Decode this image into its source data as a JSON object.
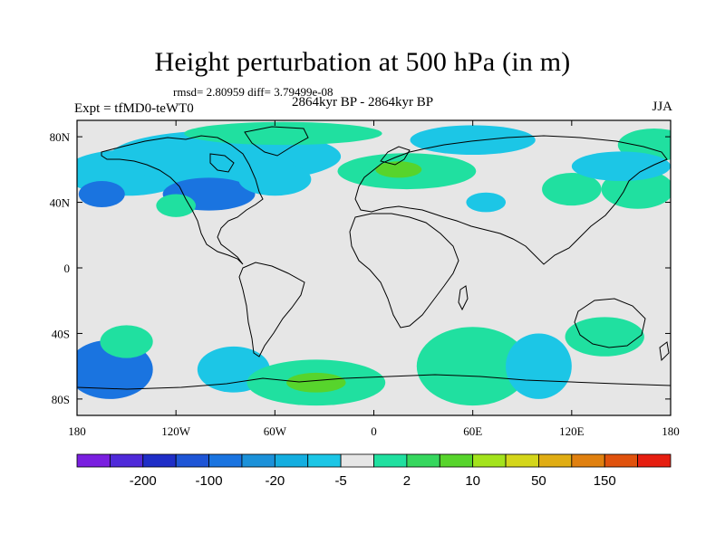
{
  "header": {
    "title": "Height perturbation at 500 hPa (in m)",
    "stats": "rmsd= 2.80959 diff= 3.79499e-08",
    "period": "2864kyr BP - 2864kyr BP",
    "experiment": "Expt = tfMD0-teWT0",
    "season": "JJA"
  },
  "map": {
    "projection": "cylindrical equidistant",
    "lon_range": [
      -180,
      180
    ],
    "lat_range": [
      -90,
      90
    ],
    "background_color": "#e6e6e6",
    "coastline_color": "#000000",
    "y_tick_labels": [
      "80N",
      "40N",
      "0",
      "40S",
      "80S"
    ],
    "x_tick_labels": [
      "180",
      "120W",
      "60W",
      "0",
      "60E",
      "120E",
      "180"
    ]
  },
  "colorbar": {
    "colors": [
      "#7a1fe0",
      "#4f2ad9",
      "#1f2ec7",
      "#1e55d6",
      "#1a74e0",
      "#1b91d9",
      "#14aee0",
      "#1cc6e6",
      "#e6e6e6",
      "#20e0a0",
      "#36d75e",
      "#57d42c",
      "#a3e31c",
      "#d4d61a",
      "#e0ad14",
      "#e0800f",
      "#e0520d",
      "#e61e10"
    ],
    "labels": [
      "-200",
      "-100",
      "-20",
      "-5",
      "2",
      "10",
      "50",
      "150"
    ]
  },
  "chart_data": {
    "type": "heatmap",
    "title": "Height perturbation at 500 hPa (in m)",
    "variable": "500 hPa height perturbation",
    "units": "m",
    "season": "JJA",
    "rmsd": 2.80959,
    "diff": 3.79499e-08,
    "color_levels": [
      "-200",
      "-100",
      "-20",
      "-5",
      "2",
      "10",
      "50",
      "150"
    ],
    "anomaly_regions": [
      {
        "lon": -150,
        "lat": 58,
        "rx": 38,
        "ry": 14,
        "level": "-5"
      },
      {
        "lon": -165,
        "lat": 45,
        "rx": 14,
        "ry": 8,
        "level": "-20"
      },
      {
        "lon": -90,
        "lat": 68,
        "rx": 70,
        "ry": 16,
        "level": "-5"
      },
      {
        "lon": -100,
        "lat": 45,
        "rx": 28,
        "ry": 10,
        "level": "-20"
      },
      {
        "lon": -60,
        "lat": 54,
        "rx": 22,
        "ry": 10,
        "level": "-5"
      },
      {
        "lon": -120,
        "lat": 38,
        "rx": 12,
        "ry": 7,
        "level": "2"
      },
      {
        "lon": -55,
        "lat": 82,
        "rx": 60,
        "ry": 7,
        "level": "2"
      },
      {
        "lon": 20,
        "lat": 59,
        "rx": 42,
        "ry": 11,
        "level": "2"
      },
      {
        "lon": 15,
        "lat": 60,
        "rx": 14,
        "ry": 5,
        "level": "10"
      },
      {
        "lon": 60,
        "lat": 78,
        "rx": 38,
        "ry": 9,
        "level": "-5"
      },
      {
        "lon": 68,
        "lat": 40,
        "rx": 12,
        "ry": 6,
        "level": "-5"
      },
      {
        "lon": 120,
        "lat": 48,
        "rx": 18,
        "ry": 10,
        "level": "2"
      },
      {
        "lon": 160,
        "lat": 48,
        "rx": 22,
        "ry": 12,
        "level": "2"
      },
      {
        "lon": 170,
        "lat": 75,
        "rx": 22,
        "ry": 10,
        "level": "2"
      },
      {
        "lon": 150,
        "lat": 62,
        "rx": 30,
        "ry": 9,
        "level": "-5"
      },
      {
        "lon": -160,
        "lat": -62,
        "rx": 26,
        "ry": 18,
        "level": "-20"
      },
      {
        "lon": -150,
        "lat": -45,
        "rx": 16,
        "ry": 10,
        "level": "2"
      },
      {
        "lon": -85,
        "lat": -62,
        "rx": 22,
        "ry": 14,
        "level": "-5"
      },
      {
        "lon": -35,
        "lat": -70,
        "rx": 42,
        "ry": 14,
        "level": "2"
      },
      {
        "lon": -35,
        "lat": -70,
        "rx": 18,
        "ry": 6,
        "level": "10"
      },
      {
        "lon": 60,
        "lat": -60,
        "rx": 34,
        "ry": 24,
        "level": "2"
      },
      {
        "lon": 100,
        "lat": -60,
        "rx": 20,
        "ry": 20,
        "level": "-5"
      },
      {
        "lon": 140,
        "lat": -42,
        "rx": 24,
        "ry": 12,
        "level": "2"
      }
    ]
  }
}
